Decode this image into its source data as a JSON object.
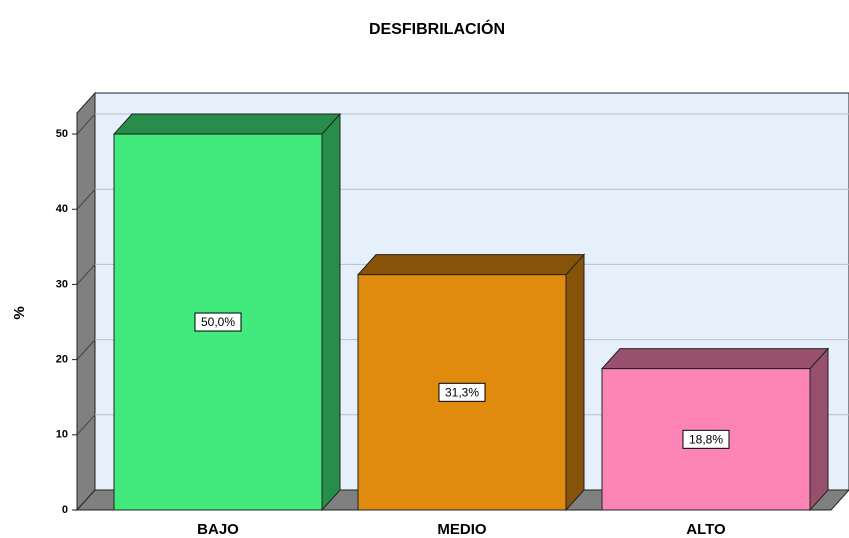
{
  "chart_data": {
    "type": "bar3d",
    "title": "DESFIBRILACIÓN",
    "y_label": "%",
    "categories": [
      "BAJO",
      "MEDIO",
      "ALTO"
    ],
    "series": [
      {
        "name": null,
        "colors": [
          "#42e97c",
          "#e08a0e",
          "#fd85b6"
        ],
        "values": [
          50,
          31.3,
          18.8
        ],
        "value_labels": [
          "50,0%",
          "31,3%",
          "18,8%"
        ]
      }
    ],
    "ylim": [
      0,
      52.8
    ],
    "yticks": [
      0,
      10,
      20,
      30,
      40,
      50
    ],
    "grid": true
  }
}
